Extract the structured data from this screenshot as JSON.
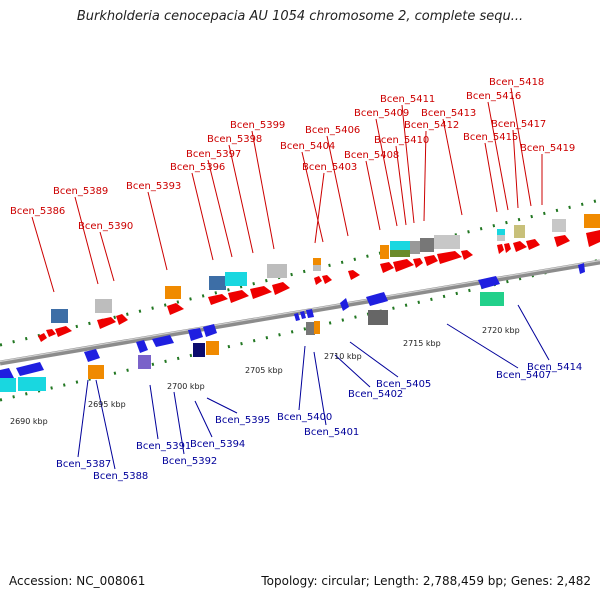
{
  "title": "Burkholderia cenocepacia AU 1054 chromosome 2, complete sequ...",
  "accession": "Accession: NC_008061",
  "summary": "Topology: circular; Length: 2,788,459 bp; Genes: 2,482",
  "colors": {
    "forward_gene": "#ee0000",
    "reverse_gene": "#1f1fe0",
    "forward_label": "#cc0000",
    "reverse_label": "#00009a",
    "backbone": "#8c8c8c",
    "tick": "#227722"
  },
  "kbp_labels": [
    "2690 kbp",
    "2695 kbp",
    "2700 kbp",
    "2705 kbp",
    "2710 kbp",
    "2715 kbp",
    "2720 kbp"
  ],
  "forward_labels": [
    "Bcen_5386",
    "Bcen_5389",
    "Bcen_5390",
    "Bcen_5393",
    "Bcen_5396",
    "Bcen_5397",
    "Bcen_5398",
    "Bcen_5399",
    "Bcen_5403",
    "Bcen_5404",
    "Bcen_5406",
    "Bcen_5408",
    "Bcen_5409",
    "Bcen_5410",
    "Bcen_5411",
    "Bcen_5412",
    "Bcen_5413",
    "Bcen_5415",
    "Bcen_5416",
    "Bcen_5417",
    "Bcen_5418",
    "Bcen_5419"
  ],
  "reverse_labels": [
    "Bcen_5387",
    "Bcen_5388",
    "Bcen_5391",
    "Bcen_5392",
    "Bcen_5394",
    "Bcen_5395",
    "Bcen_5400",
    "Bcen_5401",
    "Bcen_5402",
    "Bcen_5405",
    "Bcen_5407",
    "Bcen_5414"
  ]
}
